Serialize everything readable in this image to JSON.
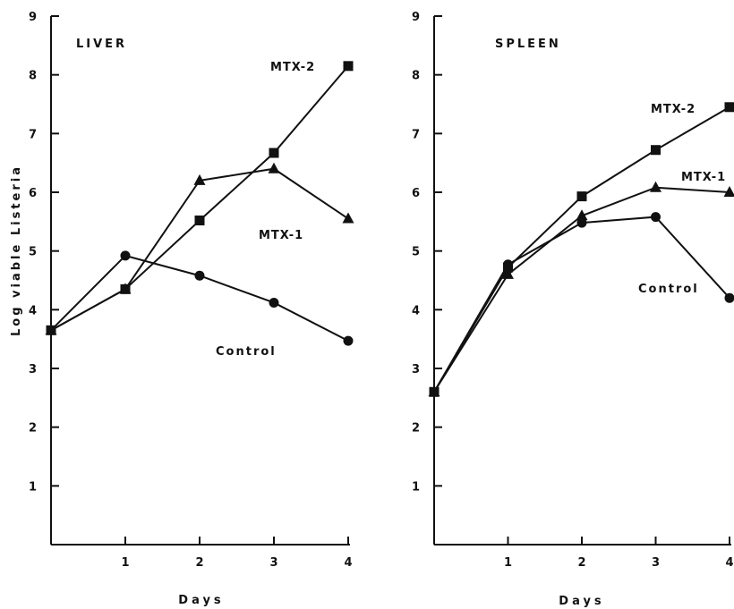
{
  "chart_data": [
    {
      "type": "line",
      "panel_label": "LIVER",
      "xlabel": "Days",
      "ylabel": "Log viable Listeria",
      "xlim": [
        0,
        4
      ],
      "ylim": [
        0,
        9
      ],
      "x_ticks": [
        1,
        2,
        3,
        4
      ],
      "y_ticks": [
        1,
        2,
        3,
        4,
        5,
        6,
        7,
        8,
        9
      ],
      "series": [
        {
          "name": "MTX-2",
          "marker": "square",
          "x": [
            0,
            1,
            2,
            3,
            4
          ],
          "y": [
            3.65,
            4.35,
            5.52,
            6.67,
            8.15
          ]
        },
        {
          "name": "MTX-1",
          "marker": "triangle",
          "x": [
            0,
            1,
            2,
            3,
            4
          ],
          "y": [
            3.65,
            4.35,
            6.2,
            6.4,
            5.55
          ]
        },
        {
          "name": "Control",
          "marker": "circle",
          "x": [
            0,
            1,
            2,
            3,
            4
          ],
          "y": [
            3.65,
            4.92,
            4.58,
            4.12,
            3.47
          ]
        }
      ]
    },
    {
      "type": "line",
      "panel_label": "SPLEEN",
      "xlabel": "Days",
      "ylabel": "",
      "xlim": [
        0,
        4
      ],
      "ylim": [
        0,
        9
      ],
      "x_ticks": [
        1,
        2,
        3,
        4
      ],
      "y_ticks": [
        1,
        2,
        3,
        4,
        5,
        6,
        7,
        8,
        9
      ],
      "series": [
        {
          "name": "MTX-2",
          "marker": "square",
          "x": [
            0,
            1,
            2,
            3,
            4
          ],
          "y": [
            2.6,
            4.72,
            5.93,
            6.72,
            7.45
          ]
        },
        {
          "name": "MTX-1",
          "marker": "triangle",
          "x": [
            0,
            1,
            2,
            3,
            4
          ],
          "y": [
            2.6,
            4.6,
            5.6,
            6.08,
            6.0
          ]
        },
        {
          "name": "Control",
          "marker": "circle",
          "x": [
            0,
            1,
            2,
            3,
            4
          ],
          "y": [
            2.6,
            4.77,
            5.48,
            5.58,
            4.2
          ]
        }
      ]
    }
  ]
}
